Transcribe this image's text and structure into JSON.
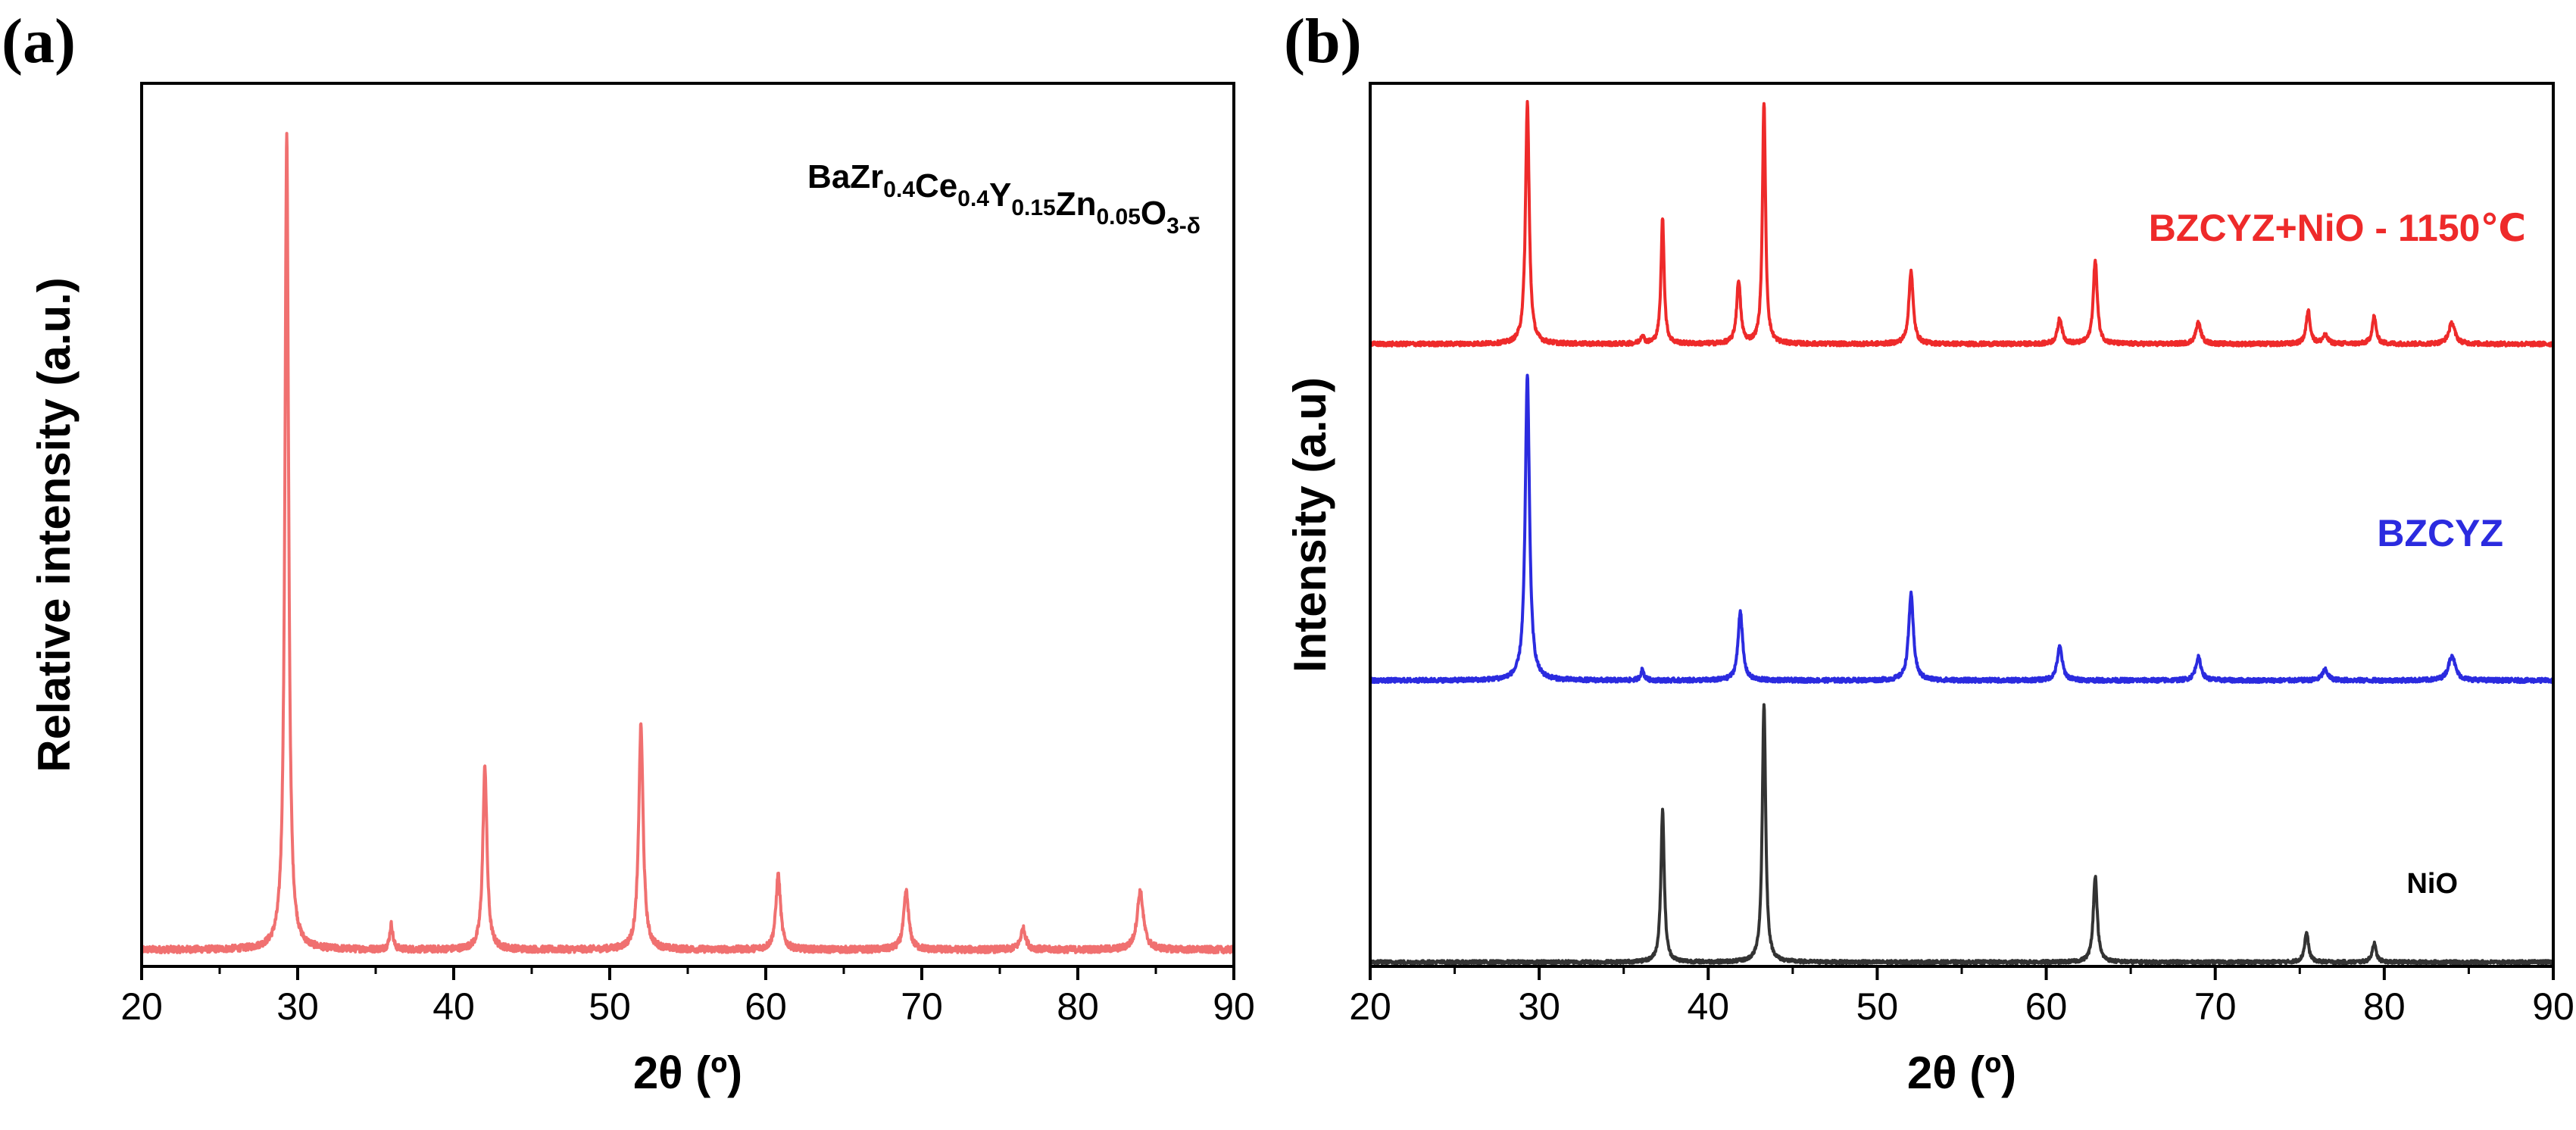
{
  "chart_data": [
    {
      "panel": "(a)",
      "type": "line",
      "xlabel": "2θ (º)",
      "ylabel": "Relative intensity (a.u.)",
      "xlim": [
        20,
        90
      ],
      "xticks": [
        20,
        30,
        40,
        50,
        60,
        70,
        80,
        90
      ],
      "xtick_labels": [
        "20",
        "30",
        "40",
        "50",
        "60",
        "70",
        "80",
        "90"
      ],
      "ylim": [
        0,
        1.06
      ],
      "yticks_shown": false,
      "legend": "none",
      "annotation": {
        "text": "BaZr0.4Ce0.4Y0.15Zn0.05O3-δ",
        "parts": [
          {
            "t": "BaZr",
            "sub": false
          },
          {
            "t": "0.4",
            "sub": true
          },
          {
            "t": "Ce",
            "sub": false
          },
          {
            "t": "0.4",
            "sub": true
          },
          {
            "t": "Y",
            "sub": false
          },
          {
            "t": "0.15",
            "sub": true
          },
          {
            "t": "Zn",
            "sub": false
          },
          {
            "t": "0.05",
            "sub": true
          },
          {
            "t": "O",
            "sub": false
          },
          {
            "t": "3-δ",
            "sub": true
          }
        ],
        "position": "top-right"
      },
      "series": [
        {
          "name": "BaZr0.4Ce0.4Y0.15Zn0.05O3-δ",
          "color": "#f07070",
          "baseline": 0.02,
          "noise": 0.004,
          "peaks": [
            {
              "x": 29.3,
              "h": 0.98,
              "w": 0.14
            },
            {
              "x": 36.0,
              "h": 0.03,
              "w": 0.12
            },
            {
              "x": 42.0,
              "h": 0.22,
              "w": 0.16
            },
            {
              "x": 52.0,
              "h": 0.27,
              "w": 0.17
            },
            {
              "x": 60.8,
              "h": 0.09,
              "w": 0.18
            },
            {
              "x": 69.0,
              "h": 0.07,
              "w": 0.19
            },
            {
              "x": 76.5,
              "h": 0.025,
              "w": 0.2
            },
            {
              "x": 84.0,
              "h": 0.07,
              "w": 0.24
            }
          ]
        }
      ]
    },
    {
      "panel": "(b)",
      "type": "line",
      "xlabel": "2θ (º)",
      "ylabel": "Intensity (a.u)",
      "xlim": [
        20,
        90
      ],
      "xticks": [
        20,
        30,
        40,
        50,
        60,
        70,
        80,
        90
      ],
      "xtick_labels": [
        "20",
        "30",
        "40",
        "50",
        "60",
        "70",
        "80",
        "90"
      ],
      "ylim": [
        0,
        4.2
      ],
      "yticks_shown": false,
      "legend": "inline labels",
      "series": [
        {
          "name": "BZCYZ+NiO - 1150℃",
          "color": "#ee2a2a",
          "offset": 2.96,
          "noise": 0.01,
          "label_position": "upper-right",
          "peaks": [
            {
              "x": 29.3,
              "h": 1.15,
              "w": 0.13
            },
            {
              "x": 36.1,
              "h": 0.04,
              "w": 0.12
            },
            {
              "x": 37.3,
              "h": 0.6,
              "w": 0.11
            },
            {
              "x": 41.8,
              "h": 0.3,
              "w": 0.14
            },
            {
              "x": 43.3,
              "h": 1.15,
              "w": 0.11
            },
            {
              "x": 52.0,
              "h": 0.35,
              "w": 0.15
            },
            {
              "x": 60.8,
              "h": 0.12,
              "w": 0.16
            },
            {
              "x": 62.9,
              "h": 0.4,
              "w": 0.14
            },
            {
              "x": 69.0,
              "h": 0.1,
              "w": 0.18
            },
            {
              "x": 75.5,
              "h": 0.16,
              "w": 0.14
            },
            {
              "x": 76.5,
              "h": 0.04,
              "w": 0.18
            },
            {
              "x": 79.4,
              "h": 0.13,
              "w": 0.14
            },
            {
              "x": 84.0,
              "h": 0.1,
              "w": 0.22
            }
          ]
        },
        {
          "name": "BZCYZ",
          "color": "#2b2bdf",
          "offset": 1.36,
          "noise": 0.01,
          "label_position": "right",
          "peaks": [
            {
              "x": 29.3,
              "h": 1.45,
              "w": 0.15
            },
            {
              "x": 36.1,
              "h": 0.05,
              "w": 0.12
            },
            {
              "x": 41.9,
              "h": 0.33,
              "w": 0.16
            },
            {
              "x": 52.0,
              "h": 0.41,
              "w": 0.17
            },
            {
              "x": 60.8,
              "h": 0.16,
              "w": 0.18
            },
            {
              "x": 69.0,
              "h": 0.11,
              "w": 0.19
            },
            {
              "x": 76.5,
              "h": 0.05,
              "w": 0.2
            },
            {
              "x": 84.0,
              "h": 0.12,
              "w": 0.24
            }
          ]
        },
        {
          "name": "NiO",
          "color": "#333333",
          "offset": 0.02,
          "noise": 0.008,
          "label_position": "lower-right",
          "peaks": [
            {
              "x": 37.3,
              "h": 0.72,
              "w": 0.12
            },
            {
              "x": 43.3,
              "h": 1.23,
              "w": 0.12
            },
            {
              "x": 62.9,
              "h": 0.41,
              "w": 0.14
            },
            {
              "x": 75.4,
              "h": 0.14,
              "w": 0.14
            },
            {
              "x": 79.4,
              "h": 0.09,
              "w": 0.14
            }
          ]
        }
      ]
    }
  ]
}
